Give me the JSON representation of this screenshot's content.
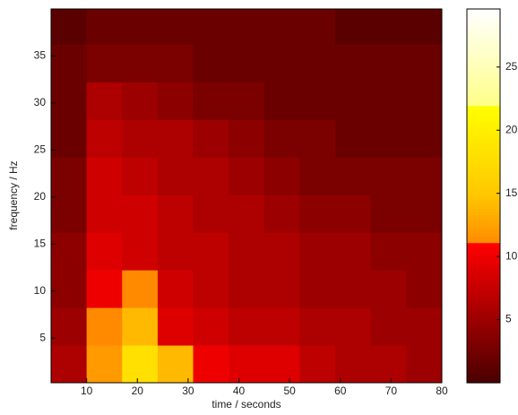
{
  "chart_data": {
    "type": "heatmap",
    "x_label": "time / seconds",
    "y_label": "frequency / Hz",
    "xbins": [
      3,
      10,
      17,
      24,
      31,
      38,
      45,
      52,
      59,
      66,
      73,
      80
    ],
    "ybins": [
      0.25,
      4.25,
      8.25,
      12.25,
      16.25,
      20.25,
      24.25,
      28.25,
      32.25,
      36.25,
      40
    ],
    "z": [
      [
        6,
        12,
        18,
        14,
        10,
        9,
        9,
        7,
        6,
        6,
        5
      ],
      [
        5,
        11,
        14,
        9,
        8,
        7,
        7,
        6,
        6,
        5,
        5
      ],
      [
        4,
        10,
        11,
        8,
        7,
        6,
        6,
        5,
        5,
        5,
        4
      ],
      [
        4,
        9,
        8,
        7,
        7,
        6,
        6,
        5,
        5,
        4,
        4
      ],
      [
        3,
        8,
        8,
        7,
        6,
        6,
        5,
        4,
        4,
        3,
        3
      ],
      [
        3,
        8,
        7,
        6,
        6,
        5,
        4,
        3,
        3,
        3,
        3
      ],
      [
        2,
        7,
        6,
        6,
        5,
        4,
        3,
        3,
        2,
        2,
        2
      ],
      [
        2,
        6,
        5,
        4,
        3,
        3,
        2,
        2,
        2,
        2,
        2
      ],
      [
        2,
        3,
        3,
        3,
        2,
        2,
        2,
        2,
        2,
        2,
        2
      ],
      [
        1,
        2,
        2,
        2,
        2,
        2,
        2,
        2,
        1,
        1,
        1
      ]
    ],
    "xlim": [
      3,
      80
    ],
    "ylim": [
      0.25,
      40
    ],
    "xticks": [
      10,
      20,
      30,
      40,
      50,
      60,
      70,
      80
    ],
    "yticks": [
      5,
      10,
      15,
      20,
      25,
      30,
      35
    ],
    "clim": [
      0,
      29.6
    ],
    "cticks": [
      5,
      10,
      15,
      20,
      25
    ],
    "colormap": [
      {
        "value": 0,
        "color": "#4a0000"
      },
      {
        "value": 11,
        "color": "#ff0000"
      },
      {
        "value": 11,
        "color": "#ff8a00"
      },
      {
        "value": 15,
        "color": "#ffc800"
      },
      {
        "value": 22,
        "color": "#ffff00"
      },
      {
        "value": 22,
        "color": "#ffff88"
      },
      {
        "value": 29.6,
        "color": "#ffffff"
      }
    ]
  }
}
